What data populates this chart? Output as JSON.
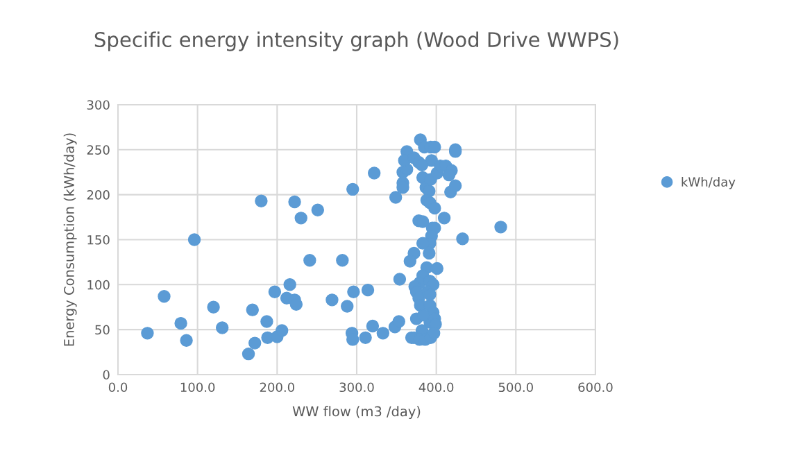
{
  "chart_data": {
    "type": "scatter",
    "title": "Specific energy intensity graph (Wood Drive WWPS)",
    "xlabel": "WW flow (m3 /day)",
    "ylabel": "Energy Consumption (kWh/day)",
    "xlim": [
      0,
      600
    ],
    "ylim": [
      0,
      300
    ],
    "xticks": [
      {
        "value": 0,
        "label": "0.0"
      },
      {
        "value": 100,
        "label": "100.0"
      },
      {
        "value": 200,
        "label": "200.0"
      },
      {
        "value": 300,
        "label": "300.0"
      },
      {
        "value": 400,
        "label": "400.0"
      },
      {
        "value": 500,
        "label": "500.0"
      },
      {
        "value": 600,
        "label": "600.0"
      }
    ],
    "yticks": [
      0,
      50,
      100,
      150,
      200,
      250,
      300
    ],
    "grid": true,
    "legend": "right",
    "marker": "circle",
    "series": [
      {
        "name": "kWh/day",
        "color": "#5b9bd5",
        "x": [
          37,
          58,
          79,
          86,
          96,
          120,
          131,
          169,
          172,
          164,
          180,
          187,
          188,
          197,
          200,
          206,
          216,
          212,
          222,
          224,
          222,
          230,
          251,
          241,
          269,
          282,
          288,
          294,
          295,
          296,
          295,
          314,
          311,
          320,
          322,
          333,
          348,
          349,
          353,
          354,
          358,
          358,
          358,
          363,
          363,
          360,
          372,
          380,
          385,
          378,
          382,
          393,
          398,
          394,
          383,
          387,
          391,
          393,
          388,
          392,
          398,
          401,
          405,
          412,
          419,
          416,
          418,
          424,
          424,
          424,
          410,
          433,
          481,
          378,
          383,
          395,
          398,
          394,
          392,
          383,
          372,
          367,
          391,
          388,
          401,
          383,
          379,
          373,
          375,
          378,
          392,
          396,
          380,
          392,
          396,
          398,
          375,
          392,
          399,
          382,
          372,
          369,
          379,
          386,
          393,
          397,
          384,
          389,
          392
        ],
        "values": [
          46,
          87,
          57,
          38,
          150,
          75,
          52,
          72,
          35,
          23,
          193,
          59,
          41,
          92,
          42,
          49,
          100,
          85,
          83,
          78,
          192,
          174,
          183,
          127,
          83,
          127,
          76,
          46,
          39,
          92,
          206,
          94,
          41,
          54,
          224,
          46,
          53,
          197,
          59,
          106,
          225,
          213,
          208,
          228,
          248,
          238,
          241,
          261,
          253,
          236,
          233,
          253,
          253,
          238,
          219,
          208,
          204,
          217,
          194,
          191,
          185,
          224,
          232,
          232,
          227,
          222,
          203,
          210,
          250,
          248,
          174,
          151,
          164,
          171,
          170,
          163,
          163,
          154,
          146,
          146,
          135,
          126,
          135,
          119,
          118,
          110,
          102,
          98,
          92,
          85,
          104,
          100,
          77,
          77,
          69,
          62,
          62,
          58,
          56,
          49,
          41,
          41,
          39,
          39,
          41,
          46,
          66,
          92,
          89
        ]
      }
    ]
  }
}
